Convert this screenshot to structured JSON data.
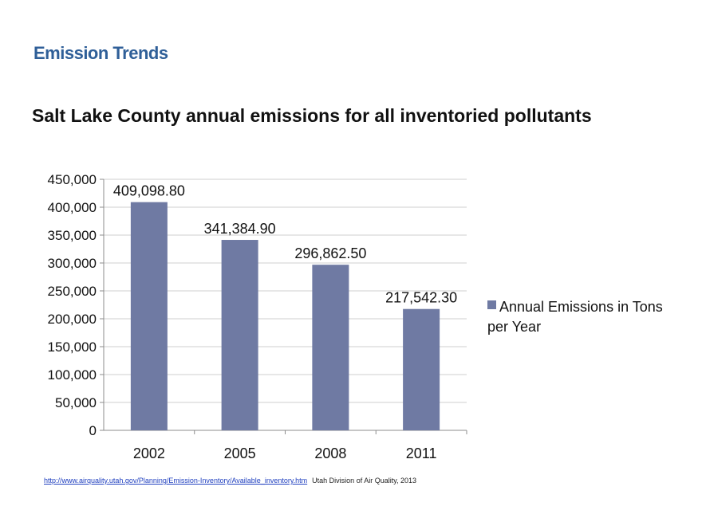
{
  "slide": {
    "heading": "Emission Trends"
  },
  "footer": {
    "link_text": "http://www.airquality.utah.gov/Planning/Emission-Inventory/Available_inventory.htm",
    "credit": "Utah Division of Air Quality, 2013"
  },
  "chart_data": {
    "type": "bar",
    "title": "Salt Lake County annual emissions for all inventoried pollutants",
    "categories": [
      "2002",
      "2005",
      "2008",
      "2011"
    ],
    "series": [
      {
        "name": "Annual Emissions in Tons per Year",
        "values": [
          409098.8,
          341384.9,
          296862.5,
          217542.3
        ],
        "labels": [
          "409,098.80",
          "341,384.90",
          "296,862.50",
          "217,542.30"
        ],
        "color": "#6f7aa3"
      }
    ],
    "yticks": [
      "0",
      "50,000",
      "100,000",
      "150,000",
      "200,000",
      "250,000",
      "300,000",
      "350,000",
      "400,000",
      "450,000"
    ],
    "ylim": [
      0,
      450000
    ],
    "grid": true,
    "legend": "right",
    "legend_lines": [
      "Annual Emissions in Tons",
      "per Year"
    ]
  }
}
